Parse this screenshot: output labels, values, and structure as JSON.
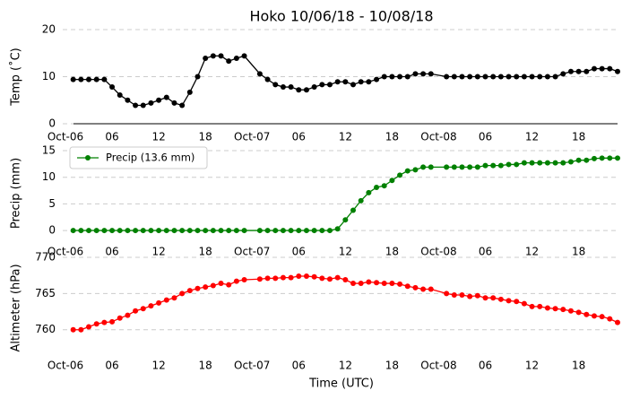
{
  "chart_data": [
    {
      "type": "line",
      "title": "Hoko 10/06/18 - 10/08/18",
      "y_label": "Temp (˚C)",
      "x": [
        "Oct-06 01:00",
        "Oct-06 02:00",
        "Oct-06 03:00",
        "Oct-06 04:00",
        "Oct-06 05:00",
        "Oct-06 06:00",
        "Oct-06 07:00",
        "Oct-06 08:00",
        "Oct-06 09:00",
        "Oct-06 10:00",
        "Oct-06 11:00",
        "Oct-06 12:00",
        "Oct-06 13:00",
        "Oct-06 14:00",
        "Oct-06 15:00",
        "Oct-06 16:00",
        "Oct-06 17:00",
        "Oct-06 18:00",
        "Oct-06 19:00",
        "Oct-06 20:00",
        "Oct-06 21:00",
        "Oct-06 22:00",
        "Oct-06 23:00",
        "Oct-07 01:00",
        "Oct-07 02:00",
        "Oct-07 03:00",
        "Oct-07 04:00",
        "Oct-07 05:00",
        "Oct-07 06:00",
        "Oct-07 07:00",
        "Oct-07 08:00",
        "Oct-07 09:00",
        "Oct-07 10:00",
        "Oct-07 11:00",
        "Oct-07 12:00",
        "Oct-07 13:00",
        "Oct-07 14:00",
        "Oct-07 15:00",
        "Oct-07 16:00",
        "Oct-07 17:00",
        "Oct-07 18:00",
        "Oct-07 19:00",
        "Oct-07 20:00",
        "Oct-07 21:00",
        "Oct-07 22:00",
        "Oct-07 23:00",
        "Oct-08 01:00",
        "Oct-08 02:00",
        "Oct-08 03:00",
        "Oct-08 04:00",
        "Oct-08 05:00",
        "Oct-08 06:00",
        "Oct-08 07:00",
        "Oct-08 08:00",
        "Oct-08 09:00",
        "Oct-08 10:00",
        "Oct-08 11:00",
        "Oct-08 12:00",
        "Oct-08 13:00",
        "Oct-08 14:00",
        "Oct-08 15:00",
        "Oct-08 16:00",
        "Oct-08 17:00",
        "Oct-08 18:00",
        "Oct-08 19:00",
        "Oct-08 20:00",
        "Oct-08 21:00",
        "Oct-08 22:00",
        "Oct-08 23:00"
      ],
      "series": [
        {
          "color": "#000000",
          "values": [
            9.4,
            9.4,
            9.4,
            9.4,
            9.4,
            7.8,
            6.1,
            5.0,
            3.9,
            3.9,
            4.4,
            5.0,
            5.6,
            4.4,
            3.9,
            6.7,
            10.0,
            13.9,
            14.4,
            14.4,
            13.3,
            13.9,
            14.4,
            10.6,
            9.4,
            8.3,
            7.8,
            7.8,
            7.2,
            7.2,
            7.8,
            8.3,
            8.3,
            8.9,
            8.9,
            8.3,
            8.9,
            8.9,
            9.4,
            10.0,
            10.0,
            10.0,
            10.0,
            10.6,
            10.6,
            10.6,
            10.0,
            10.0,
            10.0,
            10.0,
            10.0,
            10.0,
            10.0,
            10.0,
            10.0,
            10.0,
            10.0,
            10.0,
            10.0,
            10.0,
            10.0,
            10.6,
            11.1,
            11.1,
            11.1,
            11.7,
            11.7,
            11.7,
            11.1
          ]
        }
      ],
      "xlim": [
        "Oct-06 00:00",
        "Oct-08 23:00"
      ],
      "xticks": [
        {
          "value": "Oct-06 00:00",
          "label": "Oct-06"
        },
        {
          "value": "Oct-06 06:00",
          "label": "06"
        },
        {
          "value": "Oct-06 12:00",
          "label": "12"
        },
        {
          "value": "Oct-06 18:00",
          "label": "18"
        },
        {
          "value": "Oct-07 00:00",
          "label": "Oct-07"
        },
        {
          "value": "Oct-07 06:00",
          "label": "06"
        },
        {
          "value": "Oct-07 12:00",
          "label": "12"
        },
        {
          "value": "Oct-07 18:00",
          "label": "18"
        },
        {
          "value": "Oct-08 00:00",
          "label": "Oct-08"
        },
        {
          "value": "Oct-08 06:00",
          "label": "06"
        },
        {
          "value": "Oct-08 12:00",
          "label": "12"
        },
        {
          "value": "Oct-08 18:00",
          "label": "18"
        }
      ],
      "ylim": [
        0,
        20
      ],
      "yticks": [
        0,
        10,
        20
      ],
      "grid": true
    },
    {
      "type": "line",
      "y_label": "Precip (mm)",
      "legend": "upper left",
      "x": [
        "Oct-06 01:00",
        "Oct-06 02:00",
        "Oct-06 03:00",
        "Oct-06 04:00",
        "Oct-06 05:00",
        "Oct-06 06:00",
        "Oct-06 07:00",
        "Oct-06 08:00",
        "Oct-06 09:00",
        "Oct-06 10:00",
        "Oct-06 11:00",
        "Oct-06 12:00",
        "Oct-06 13:00",
        "Oct-06 14:00",
        "Oct-06 15:00",
        "Oct-06 16:00",
        "Oct-06 17:00",
        "Oct-06 18:00",
        "Oct-06 19:00",
        "Oct-06 20:00",
        "Oct-06 21:00",
        "Oct-06 22:00",
        "Oct-06 23:00",
        "Oct-07 01:00",
        "Oct-07 02:00",
        "Oct-07 03:00",
        "Oct-07 04:00",
        "Oct-07 05:00",
        "Oct-07 06:00",
        "Oct-07 07:00",
        "Oct-07 08:00",
        "Oct-07 09:00",
        "Oct-07 10:00",
        "Oct-07 11:00",
        "Oct-07 12:00",
        "Oct-07 13:00",
        "Oct-07 14:00",
        "Oct-07 15:00",
        "Oct-07 16:00",
        "Oct-07 17:00",
        "Oct-07 18:00",
        "Oct-07 19:00",
        "Oct-07 20:00",
        "Oct-07 21:00",
        "Oct-07 22:00",
        "Oct-07 23:00",
        "Oct-08 01:00",
        "Oct-08 02:00",
        "Oct-08 03:00",
        "Oct-08 04:00",
        "Oct-08 05:00",
        "Oct-08 06:00",
        "Oct-08 07:00",
        "Oct-08 08:00",
        "Oct-08 09:00",
        "Oct-08 10:00",
        "Oct-08 11:00",
        "Oct-08 12:00",
        "Oct-08 13:00",
        "Oct-08 14:00",
        "Oct-08 15:00",
        "Oct-08 16:00",
        "Oct-08 17:00",
        "Oct-08 18:00",
        "Oct-08 19:00",
        "Oct-08 20:00",
        "Oct-08 21:00",
        "Oct-08 22:00",
        "Oct-08 23:00"
      ],
      "series": [
        {
          "name": "Precip (13.6 mm)",
          "color": "#008000",
          "values": [
            0,
            0,
            0,
            0,
            0,
            0,
            0,
            0,
            0,
            0,
            0,
            0,
            0,
            0,
            0,
            0,
            0,
            0,
            0,
            0,
            0,
            0,
            0,
            0,
            0,
            0,
            0,
            0,
            0,
            0,
            0,
            0,
            0,
            0.3,
            2.0,
            3.8,
            5.6,
            7.1,
            8.1,
            8.4,
            9.4,
            10.4,
            11.2,
            11.4,
            11.9,
            11.9,
            11.9,
            11.9,
            11.9,
            11.9,
            11.9,
            12.2,
            12.2,
            12.2,
            12.4,
            12.4,
            12.7,
            12.7,
            12.7,
            12.7,
            12.7,
            12.7,
            12.9,
            13.2,
            13.2,
            13.5,
            13.6,
            13.6,
            13.6
          ]
        }
      ],
      "xlim": [
        "Oct-06 00:00",
        "Oct-08 23:00"
      ],
      "xticks": [
        {
          "value": "Oct-06 00:00",
          "label": "Oct-06"
        },
        {
          "value": "Oct-06 06:00",
          "label": "06"
        },
        {
          "value": "Oct-06 12:00",
          "label": "12"
        },
        {
          "value": "Oct-06 18:00",
          "label": "18"
        },
        {
          "value": "Oct-07 00:00",
          "label": "Oct-07"
        },
        {
          "value": "Oct-07 06:00",
          "label": "06"
        },
        {
          "value": "Oct-07 12:00",
          "label": "12"
        },
        {
          "value": "Oct-07 18:00",
          "label": "18"
        },
        {
          "value": "Oct-08 00:00",
          "label": "Oct-08"
        },
        {
          "value": "Oct-08 06:00",
          "label": "06"
        },
        {
          "value": "Oct-08 12:00",
          "label": "12"
        },
        {
          "value": "Oct-08 18:00",
          "label": "18"
        }
      ],
      "ylim": [
        -1,
        15
      ],
      "yticks": [
        0,
        5,
        10,
        15
      ],
      "grid": true
    },
    {
      "type": "line",
      "y_label": "Altimeter (hPa)",
      "x_label": "Time (UTC)",
      "x": [
        "Oct-06 01:00",
        "Oct-06 02:00",
        "Oct-06 03:00",
        "Oct-06 04:00",
        "Oct-06 05:00",
        "Oct-06 06:00",
        "Oct-06 07:00",
        "Oct-06 08:00",
        "Oct-06 09:00",
        "Oct-06 10:00",
        "Oct-06 11:00",
        "Oct-06 12:00",
        "Oct-06 13:00",
        "Oct-06 14:00",
        "Oct-06 15:00",
        "Oct-06 16:00",
        "Oct-06 17:00",
        "Oct-06 18:00",
        "Oct-06 19:00",
        "Oct-06 20:00",
        "Oct-06 21:00",
        "Oct-06 22:00",
        "Oct-06 23:00",
        "Oct-07 01:00",
        "Oct-07 02:00",
        "Oct-07 03:00",
        "Oct-07 04:00",
        "Oct-07 05:00",
        "Oct-07 06:00",
        "Oct-07 07:00",
        "Oct-07 08:00",
        "Oct-07 09:00",
        "Oct-07 10:00",
        "Oct-07 11:00",
        "Oct-07 12:00",
        "Oct-07 13:00",
        "Oct-07 14:00",
        "Oct-07 15:00",
        "Oct-07 16:00",
        "Oct-07 17:00",
        "Oct-07 18:00",
        "Oct-07 19:00",
        "Oct-07 20:00",
        "Oct-07 21:00",
        "Oct-07 22:00",
        "Oct-07 23:00",
        "Oct-08 01:00",
        "Oct-08 02:00",
        "Oct-08 03:00",
        "Oct-08 04:00",
        "Oct-08 05:00",
        "Oct-08 06:00",
        "Oct-08 07:00",
        "Oct-08 08:00",
        "Oct-08 09:00",
        "Oct-08 10:00",
        "Oct-08 11:00",
        "Oct-08 12:00",
        "Oct-08 13:00",
        "Oct-08 14:00",
        "Oct-08 15:00",
        "Oct-08 16:00",
        "Oct-08 17:00",
        "Oct-08 18:00",
        "Oct-08 19:00",
        "Oct-08 20:00",
        "Oct-08 21:00",
        "Oct-08 22:00",
        "Oct-08 23:00"
      ],
      "series": [
        {
          "color": "#ff0000",
          "values": [
            760.0,
            760.0,
            760.4,
            760.8,
            761.0,
            761.1,
            761.6,
            762.0,
            762.6,
            762.9,
            763.3,
            763.7,
            764.1,
            764.4,
            765.0,
            765.4,
            765.7,
            765.9,
            766.1,
            766.4,
            766.2,
            766.7,
            766.9,
            767.0,
            767.1,
            767.1,
            767.2,
            767.2,
            767.4,
            767.4,
            767.3,
            767.1,
            767.0,
            767.2,
            766.9,
            766.4,
            766.4,
            766.6,
            766.5,
            766.4,
            766.4,
            766.3,
            766.0,
            765.8,
            765.6,
            765.6,
            765.0,
            764.8,
            764.8,
            764.6,
            764.7,
            764.4,
            764.4,
            764.2,
            764.0,
            763.9,
            763.6,
            763.2,
            763.2,
            763.0,
            762.9,
            762.8,
            762.6,
            762.4,
            762.1,
            761.9,
            761.8,
            761.5,
            761.0
          ]
        }
      ],
      "xlim": [
        "Oct-06 00:00",
        "Oct-08 23:00"
      ],
      "xticks": [
        {
          "value": "Oct-06 00:00",
          "label": "Oct-06"
        },
        {
          "value": "Oct-06 06:00",
          "label": "06"
        },
        {
          "value": "Oct-06 12:00",
          "label": "12"
        },
        {
          "value": "Oct-06 18:00",
          "label": "18"
        },
        {
          "value": "Oct-07 00:00",
          "label": "Oct-07"
        },
        {
          "value": "Oct-07 06:00",
          "label": "06"
        },
        {
          "value": "Oct-07 12:00",
          "label": "12"
        },
        {
          "value": "Oct-07 18:00",
          "label": "18"
        },
        {
          "value": "Oct-08 00:00",
          "label": "Oct-08"
        },
        {
          "value": "Oct-08 06:00",
          "label": "06"
        },
        {
          "value": "Oct-08 12:00",
          "label": "12"
        },
        {
          "value": "Oct-08 18:00",
          "label": "18"
        }
      ],
      "ylim": [
        756,
        770
      ],
      "yticks": [
        760,
        765,
        770
      ],
      "grid": true
    }
  ]
}
